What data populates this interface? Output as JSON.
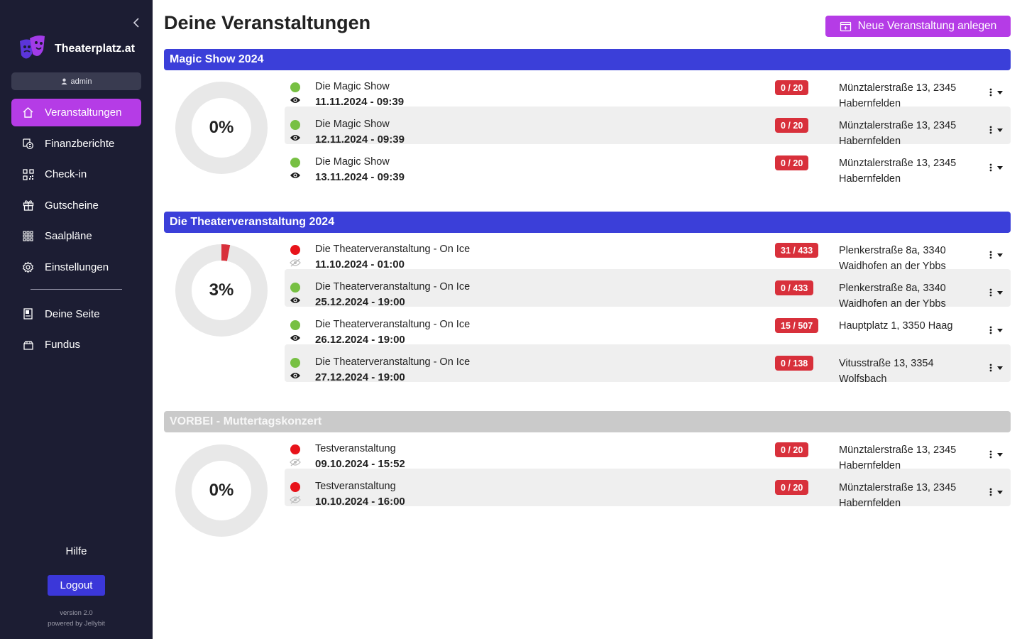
{
  "sidebar": {
    "brand": "Theaterplatz.at",
    "user": "admin",
    "nav": [
      {
        "label": "Veranstaltungen",
        "icon": "home-icon",
        "active": true
      },
      {
        "label": "Finanzberichte",
        "icon": "finance-report-icon"
      },
      {
        "label": "Check-in",
        "icon": "qr-code-icon"
      },
      {
        "label": "Gutscheine",
        "icon": "gift-icon"
      },
      {
        "label": "Saalpläne",
        "icon": "seat-grid-icon"
      },
      {
        "label": "Einstellungen",
        "icon": "gear-icon"
      }
    ],
    "nav2": [
      {
        "label": "Deine Seite",
        "icon": "page-icon"
      },
      {
        "label": "Fundus",
        "icon": "archive-box-icon"
      }
    ],
    "help": "Hilfe",
    "logout": "Logout",
    "version": "version 2.0",
    "powered_by": "powered by Jellybit"
  },
  "page": {
    "title": "Deine Veranstaltungen",
    "new_button": "Neue Veranstaltung anlegen"
  },
  "colors": {
    "sidebar_bg": "#1c1d33",
    "accent_purple": "#b53ce6",
    "group_blue": "#3b3fd9",
    "group_past": "#cacaca",
    "badge_red": "#d8303b",
    "status_green": "#77c043",
    "status_red": "#e8131a"
  },
  "groups": [
    {
      "title": "Magic Show 2024",
      "past": false,
      "percent_label": "0%",
      "percent": 0,
      "events": [
        {
          "name": "Die Magic Show",
          "date": "11.11.2024 - 09:39",
          "status": "green",
          "visible": true,
          "tickets": "0 / 20",
          "address": "Münztalerstraße 13, 2345 Habernfelden"
        },
        {
          "name": "Die Magic Show",
          "date": "12.11.2024 - 09:39",
          "status": "green",
          "visible": true,
          "tickets": "0 / 20",
          "address": "Münztalerstraße 13, 2345 Habernfelden"
        },
        {
          "name": "Die Magic Show",
          "date": "13.11.2024 - 09:39",
          "status": "green",
          "visible": true,
          "tickets": "0 / 20",
          "address": "Münztalerstraße 13, 2345 Habernfelden"
        }
      ]
    },
    {
      "title": "Die Theaterveranstaltung 2024",
      "past": false,
      "percent_label": "3%",
      "percent": 3,
      "events": [
        {
          "name": "Die Theaterveranstaltung - On Ice",
          "date": "11.10.2024 - 01:00",
          "status": "red",
          "visible": false,
          "tickets": "31 / 433",
          "address": "Plenkerstraße 8a, 3340 Waidhofen an der Ybbs"
        },
        {
          "name": "Die Theaterveranstaltung - On Ice",
          "date": "25.12.2024 - 19:00",
          "status": "green",
          "visible": true,
          "tickets": "0 / 433",
          "address": "Plenkerstraße 8a, 3340 Waidhofen an der Ybbs"
        },
        {
          "name": "Die Theaterveranstaltung - On Ice",
          "date": "26.12.2024 - 19:00",
          "status": "green",
          "visible": true,
          "tickets": "15 / 507",
          "address": "Hauptplatz 1, 3350 Haag"
        },
        {
          "name": "Die Theaterveranstaltung - On Ice",
          "date": "27.12.2024 - 19:00",
          "status": "green",
          "visible": true,
          "tickets": "0 / 138",
          "address": "Vitusstraße 13, 3354 Wolfsbach"
        }
      ]
    },
    {
      "title": "VORBEI - Muttertagskonzert",
      "past": true,
      "percent_label": "0%",
      "percent": 0,
      "events": [
        {
          "name": "Testveranstaltung",
          "date": "09.10.2024 - 15:52",
          "status": "red",
          "visible": false,
          "tickets": "0 / 20",
          "address": "Münztalerstraße 13, 2345 Habernfelden"
        },
        {
          "name": "Testveranstaltung",
          "date": "10.10.2024 - 16:00",
          "status": "red",
          "visible": false,
          "tickets": "0 / 20",
          "address": "Münztalerstraße 13, 2345 Habernfelden"
        }
      ]
    }
  ]
}
